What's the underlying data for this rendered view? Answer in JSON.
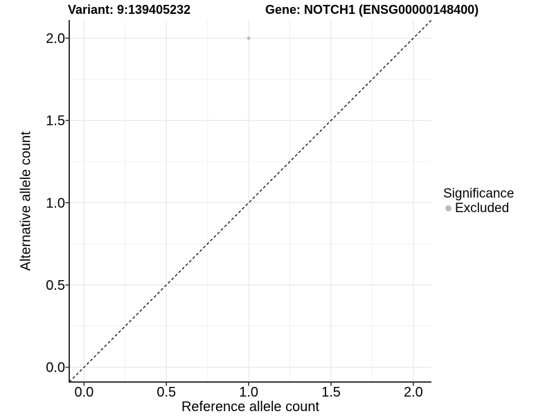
{
  "titles": {
    "variant": "Variant: 9:139405232",
    "gene": "Gene: NOTCH1 (ENSG00000148400)"
  },
  "chart_data": {
    "type": "scatter",
    "title_left": "Variant: 9:139405232",
    "title_right": "Gene: NOTCH1 (ENSG00000148400)",
    "xlabel": "Reference allele count",
    "ylabel": "Alternative allele count",
    "xlim": [
      -0.09,
      2.11
    ],
    "ylim": [
      -0.09,
      2.11
    ],
    "xticks": [
      0,
      0.5,
      1,
      1.5,
      2
    ],
    "yticks": [
      0,
      0.5,
      1,
      1.5,
      2
    ],
    "xminor": [
      0.25,
      0.75,
      1.25,
      1.75
    ],
    "yminor": [
      0.25,
      0.75,
      1.25,
      1.75
    ],
    "tick_decimals": 1,
    "grid": true,
    "points": [
      {
        "x": 1.0,
        "y": 2.0,
        "series": "Excluded",
        "color": "#bcbcbc"
      }
    ],
    "reference_line": {
      "kind": "identity",
      "from": [
        -0.09,
        -0.09
      ],
      "to": [
        2.11,
        2.11
      ],
      "style": "dashed",
      "color": "#000000"
    },
    "legend": {
      "title": "Significance",
      "position": "right",
      "items": [
        {
          "label": "Excluded",
          "color": "#bcbcbc",
          "marker": "circle"
        }
      ]
    },
    "colors": {
      "axis_line": "#333333",
      "grid_major": "#e7e7e7",
      "grid_minor": "#f0f0f0",
      "tick_text": "#000000",
      "background": "#ffffff"
    }
  }
}
